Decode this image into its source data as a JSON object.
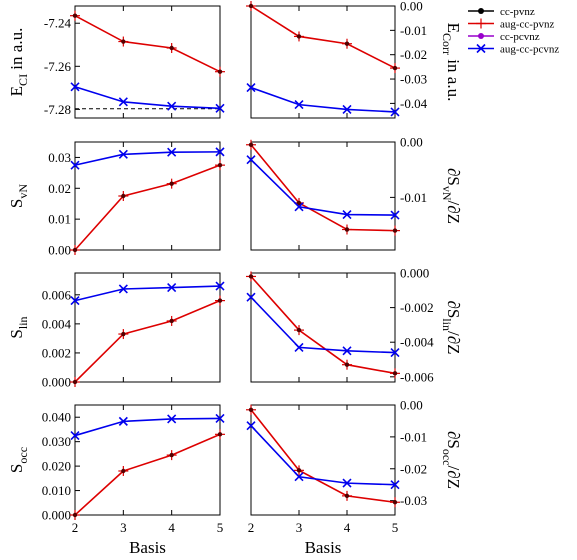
{
  "chart_data": {
    "type": "line",
    "legend": {
      "placement": "top-right",
      "entries": [
        {
          "name": "cc-pvnz",
          "color": "#000000",
          "marker": "dot"
        },
        {
          "name": "aug-cc-pvnz",
          "color": "#dd0000",
          "marker": "plus"
        },
        {
          "name": "cc-pcvnz",
          "color": "#9900cc",
          "marker": "dot"
        },
        {
          "name": "aug-cc-pcvnz",
          "color": "#0000ee",
          "marker": "x"
        }
      ]
    },
    "x_ticks": [
      "2",
      "3",
      "4",
      "5"
    ],
    "xlabel": "Basis",
    "panels": [
      {
        "id": "eci",
        "side": "left",
        "ylabel_main": "E",
        "ylabel_sub": "CI",
        "ylabel_rest": " in a.u.",
        "ylim": [
          -7.284,
          -7.232
        ],
        "y_ticks": [
          {
            "v": -7.24,
            "label": "-7.24"
          },
          {
            "v": -7.26,
            "label": "-7.26"
          },
          {
            "v": -7.28,
            "label": "-7.28"
          }
        ],
        "reference_line": -7.2797,
        "series": [
          {
            "name": "aug-cc-pvnz",
            "x": [
              2,
              3,
              4,
              5
            ],
            "values": [
              -7.2365,
              -7.2485,
              -7.2515,
              -7.2625
            ]
          },
          {
            "name": "aug-cc-pcvnz",
            "x": [
              2,
              3,
              4,
              5
            ],
            "values": [
              -7.2695,
              -7.2765,
              -7.2785,
              -7.2795
            ]
          }
        ]
      },
      {
        "id": "ecorr",
        "side": "right",
        "ylabel_main": "E",
        "ylabel_sub": "Corr",
        "ylabel_rest": " in a.u.",
        "ylim": [
          -0.046,
          0.0
        ],
        "y_ticks": [
          {
            "v": 0.0,
            "label": "0.00"
          },
          {
            "v": -0.01,
            "label": "-0.01"
          },
          {
            "v": -0.02,
            "label": "-0.02"
          },
          {
            "v": -0.03,
            "label": "-0.03"
          },
          {
            "v": -0.04,
            "label": "-0.04"
          }
        ],
        "series": [
          {
            "name": "aug-cc-pvnz",
            "x": [
              2,
              3,
              4,
              5
            ],
            "values": [
              0.0,
              -0.0125,
              -0.0155,
              -0.0255
            ]
          },
          {
            "name": "aug-cc-pcvnz",
            "x": [
              2,
              3,
              4,
              5
            ],
            "values": [
              -0.0335,
              -0.0405,
              -0.0425,
              -0.0435
            ]
          }
        ]
      },
      {
        "id": "svn",
        "side": "left",
        "ylabel_main": "S",
        "ylabel_sub": "vN",
        "ylabel_rest": "",
        "ylim": [
          0.0,
          0.035
        ],
        "y_ticks": [
          {
            "v": 0.0,
            "label": "0.00"
          },
          {
            "v": 0.01,
            "label": "0.01"
          },
          {
            "v": 0.02,
            "label": "0.02"
          },
          {
            "v": 0.03,
            "label": "0.03"
          }
        ],
        "series": [
          {
            "name": "aug-cc-pvnz",
            "x": [
              2,
              3,
              4,
              5
            ],
            "values": [
              0.0,
              0.0175,
              0.0215,
              0.0275
            ]
          },
          {
            "name": "aug-cc-pcvnz",
            "x": [
              2,
              3,
              4,
              5
            ],
            "values": [
              0.0275,
              0.031,
              0.0317,
              0.0318
            ]
          }
        ]
      },
      {
        "id": "dsvn",
        "side": "right",
        "ylabel_main": "∂S",
        "ylabel_sub": "vN",
        "ylabel_rest": "/∂Z",
        "ylim": [
          -0.0195,
          0.0
        ],
        "y_ticks": [
          {
            "v": 0.0,
            "label": "0.00"
          },
          {
            "v": -0.01,
            "label": "-0.01"
          }
        ],
        "series": [
          {
            "name": "aug-cc-pvnz",
            "x": [
              2,
              3,
              4,
              5
            ],
            "values": [
              -0.0005,
              -0.011,
              -0.0158,
              -0.016
            ]
          },
          {
            "name": "aug-cc-pcvnz",
            "x": [
              2,
              3,
              4,
              5
            ],
            "values": [
              -0.0032,
              -0.0117,
              -0.0131,
              -0.0132
            ]
          }
        ]
      },
      {
        "id": "slin",
        "side": "left",
        "ylabel_main": "S",
        "ylabel_sub": "lin",
        "ylabel_rest": "",
        "ylim": [
          0.0,
          0.0075
        ],
        "y_ticks": [
          {
            "v": 0.0,
            "label": "0.000"
          },
          {
            "v": 0.002,
            "label": "0.002"
          },
          {
            "v": 0.004,
            "label": "0.004"
          },
          {
            "v": 0.006,
            "label": "0.006"
          }
        ],
        "series": [
          {
            "name": "aug-cc-pvnz",
            "x": [
              2,
              3,
              4,
              5
            ],
            "values": [
              0.0,
              0.0033,
              0.0042,
              0.0056
            ]
          },
          {
            "name": "aug-cc-pcvnz",
            "x": [
              2,
              3,
              4,
              5
            ],
            "values": [
              0.0056,
              0.0064,
              0.0065,
              0.0066
            ]
          }
        ]
      },
      {
        "id": "dslin",
        "side": "right",
        "ylabel_main": "∂S",
        "ylabel_sub": "lin",
        "ylabel_rest": "/∂Z",
        "ylim": [
          -0.0063,
          0.0
        ],
        "y_ticks": [
          {
            "v": 0.0,
            "label": "0.000"
          },
          {
            "v": -0.002,
            "label": "-0.002"
          },
          {
            "v": -0.004,
            "label": "-0.004"
          },
          {
            "v": -0.006,
            "label": "-0.006"
          }
        ],
        "series": [
          {
            "name": "aug-cc-pvnz",
            "x": [
              2,
              3,
              4,
              5
            ],
            "values": [
              -0.0002,
              -0.0033,
              -0.0053,
              -0.0058
            ]
          },
          {
            "name": "aug-cc-pcvnz",
            "x": [
              2,
              3,
              4,
              5
            ],
            "values": [
              -0.0014,
              -0.0043,
              -0.0045,
              -0.0046
            ]
          }
        ]
      },
      {
        "id": "socc",
        "side": "left",
        "ylabel_main": "S",
        "ylabel_sub": "occ",
        "ylabel_rest": "",
        "ylim": [
          0.0,
          0.045
        ],
        "y_ticks": [
          {
            "v": 0.0,
            "label": "0.000"
          },
          {
            "v": 0.01,
            "label": "0.010"
          },
          {
            "v": 0.02,
            "label": "0.020"
          },
          {
            "v": 0.03,
            "label": "0.030"
          },
          {
            "v": 0.04,
            "label": "0.040"
          }
        ],
        "series": [
          {
            "name": "aug-cc-pvnz",
            "x": [
              2,
              3,
              4,
              5
            ],
            "values": [
              0.0,
              0.018,
              0.0245,
              0.033
            ]
          },
          {
            "name": "aug-cc-pcvnz",
            "x": [
              2,
              3,
              4,
              5
            ],
            "values": [
              0.0325,
              0.0383,
              0.0393,
              0.0395
            ]
          }
        ]
      },
      {
        "id": "dsocc",
        "side": "right",
        "ylabel_main": "∂S",
        "ylabel_sub": "occ",
        "ylabel_rest": "/∂Z",
        "ylim": [
          -0.0345,
          0.0
        ],
        "y_ticks": [
          {
            "v": 0.0,
            "label": "0.00"
          },
          {
            "v": -0.01,
            "label": "-0.01"
          },
          {
            "v": -0.02,
            "label": "-0.02"
          },
          {
            "v": -0.03,
            "label": "-0.03"
          }
        ],
        "series": [
          {
            "name": "aug-cc-pvnz",
            "x": [
              2,
              3,
              4,
              5
            ],
            "values": [
              -0.0015,
              -0.0205,
              -0.0285,
              -0.0305
            ]
          },
          {
            "name": "aug-cc-pcvnz",
            "x": [
              2,
              3,
              4,
              5
            ],
            "values": [
              -0.0065,
              -0.0225,
              -0.0245,
              -0.025
            ]
          }
        ]
      }
    ]
  }
}
